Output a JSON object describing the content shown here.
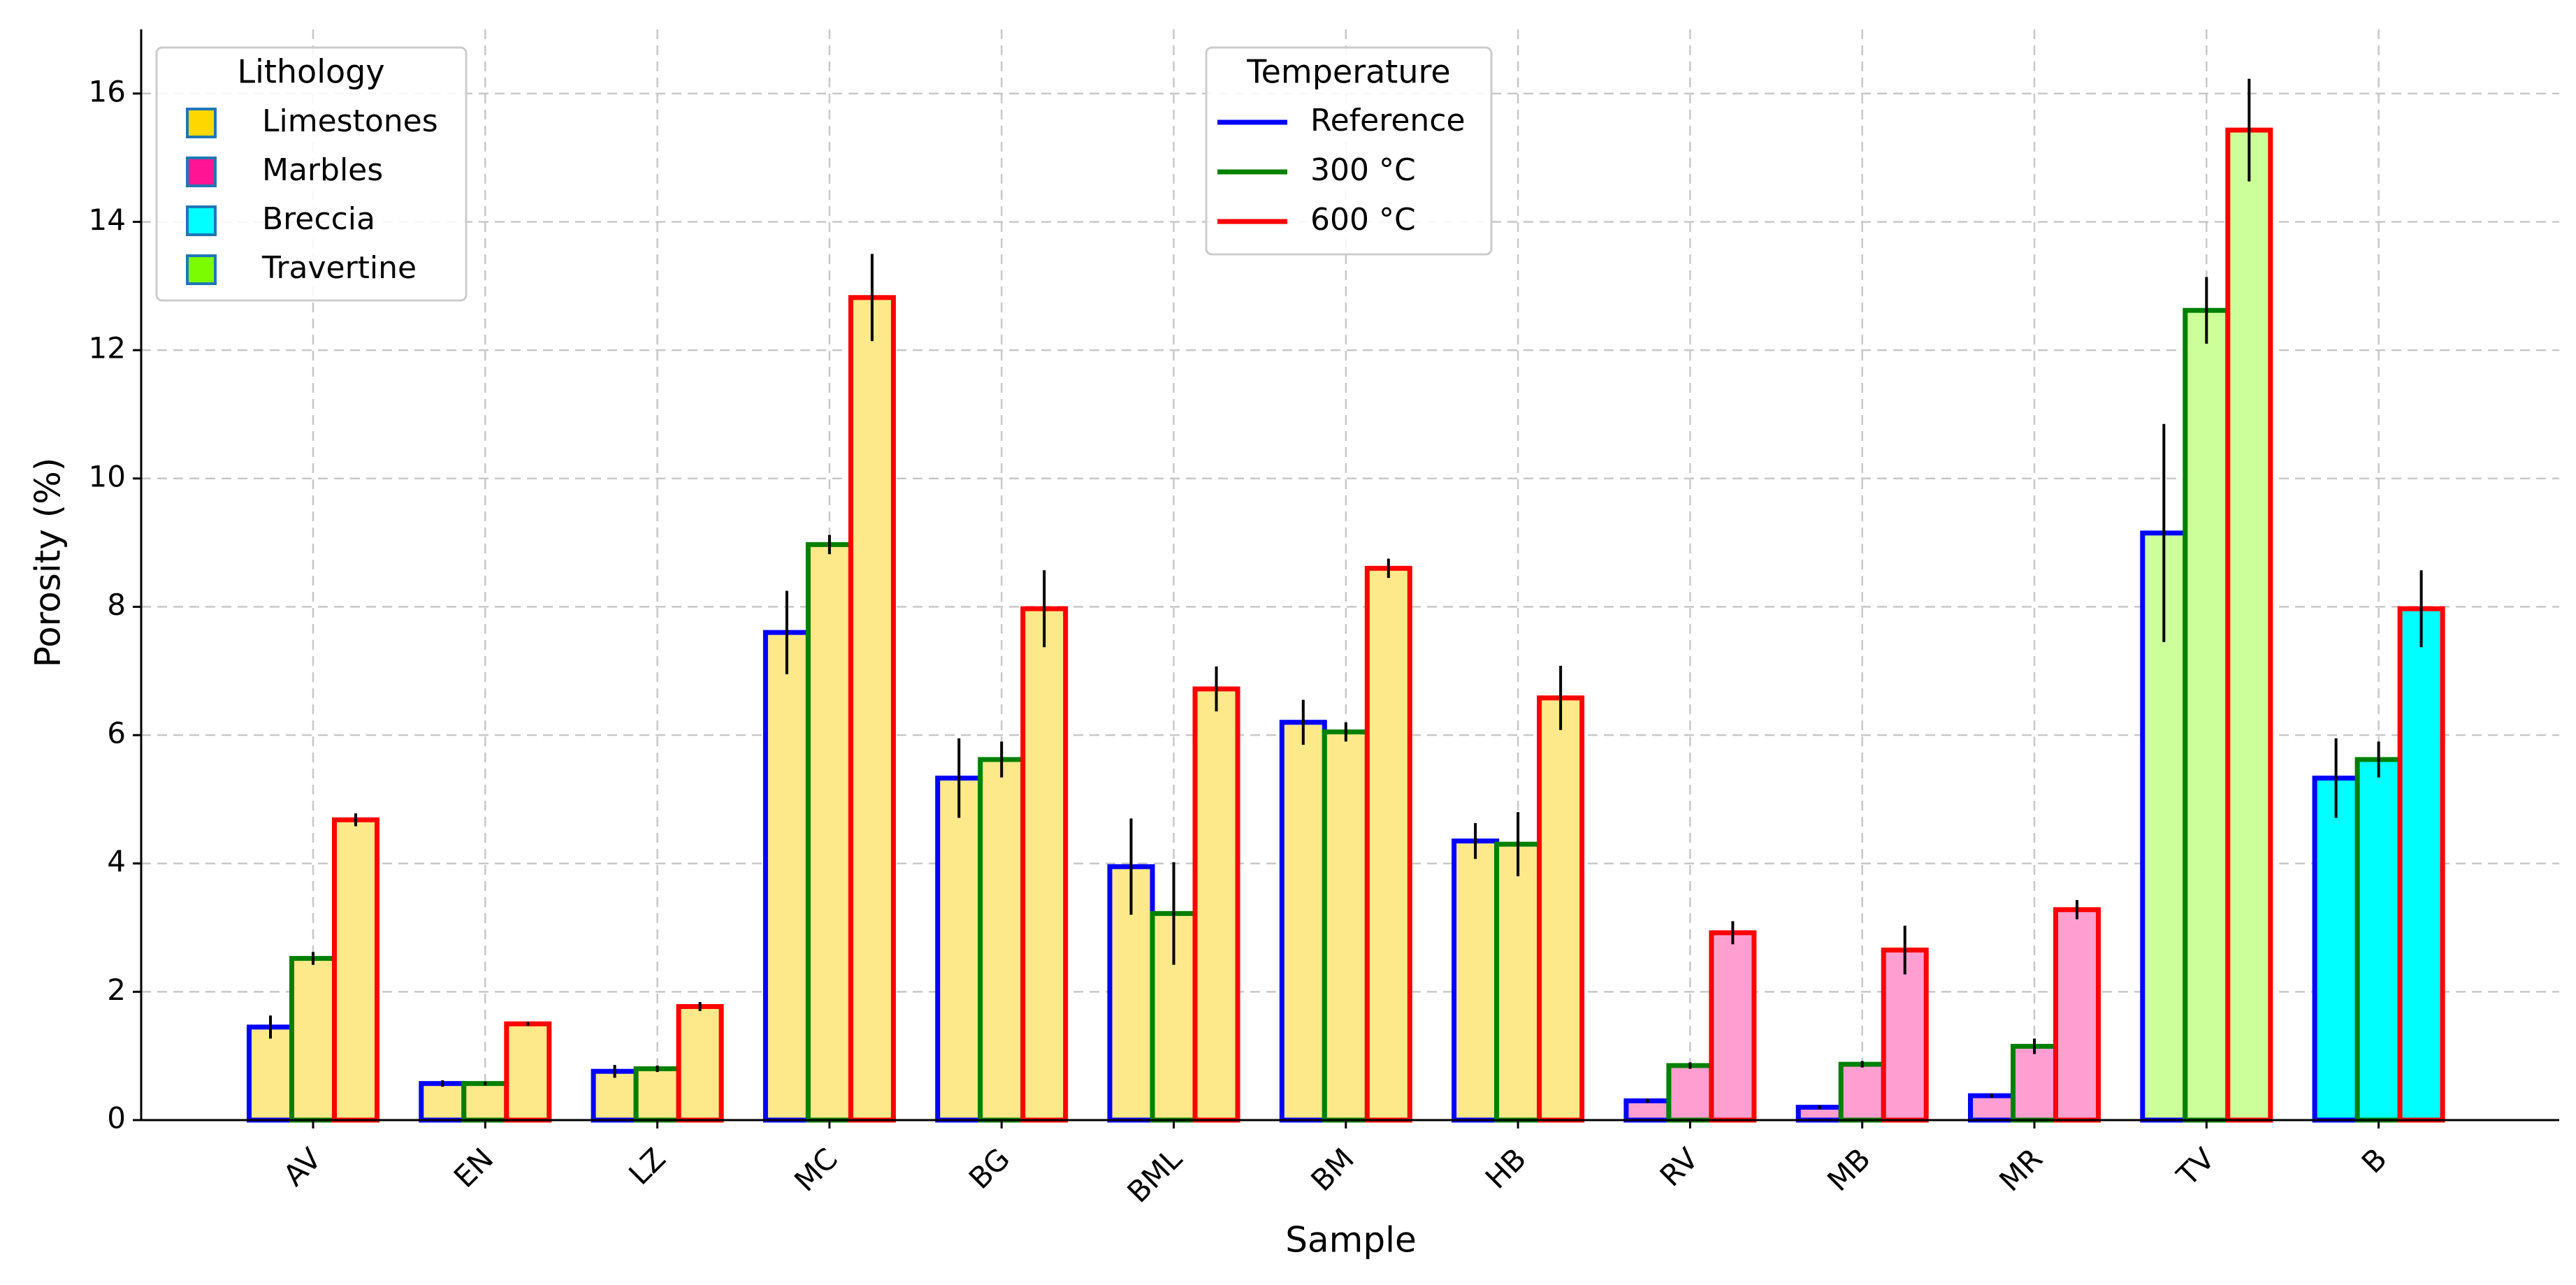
{
  "chart_data": {
    "type": "bar",
    "title": "",
    "xlabel": "Sample",
    "ylabel": "Porosity (%)",
    "ylim": [
      0,
      17
    ],
    "yticks": [
      0,
      2,
      4,
      6,
      8,
      10,
      12,
      14,
      16
    ],
    "grid": true,
    "categories": [
      "AV",
      "EN",
      "LZ",
      "MC",
      "BG",
      "BML",
      "BM",
      "HB",
      "RV",
      "MB",
      "MR",
      "TV",
      "B"
    ],
    "lithology_of_category": [
      "Limestones",
      "Limestones",
      "Limestones",
      "Limestones",
      "Limestones",
      "Limestones",
      "Limestones",
      "Limestones",
      "Marbles",
      "Marbles",
      "Marbles",
      "Travertine",
      "Breccia"
    ],
    "series": [
      {
        "name": "Reference",
        "edge_color": "#0000ff",
        "values": [
          1.45,
          0.57,
          0.76,
          7.6,
          5.33,
          3.95,
          6.2,
          4.35,
          0.3,
          0.2,
          0.38,
          9.15,
          5.33
        ],
        "errors": [
          0.18,
          0.05,
          0.1,
          0.65,
          0.62,
          0.75,
          0.35,
          0.28,
          0.03,
          0.03,
          0.03,
          1.7,
          0.62
        ]
      },
      {
        "name": "300 °C",
        "edge_color": "#008000",
        "values": [
          2.52,
          0.57,
          0.8,
          8.97,
          5.62,
          3.22,
          6.05,
          4.3,
          0.85,
          0.87,
          1.15,
          12.62,
          5.62
        ],
        "errors": [
          0.1,
          0.03,
          0.05,
          0.15,
          0.28,
          0.8,
          0.15,
          0.5,
          0.05,
          0.05,
          0.12,
          0.52,
          0.28
        ]
      },
      {
        "name": "600 °C",
        "edge_color": "#ff0000",
        "values": [
          4.68,
          1.5,
          1.77,
          12.82,
          7.97,
          6.72,
          8.6,
          6.58,
          2.92,
          2.65,
          3.28,
          15.43,
          7.97
        ],
        "errors": [
          0.1,
          0.03,
          0.07,
          0.68,
          0.6,
          0.35,
          0.15,
          0.5,
          0.18,
          0.38,
          0.15,
          0.8,
          0.6
        ]
      }
    ],
    "legends": {
      "lithology": {
        "title": "Lithology",
        "position": "top-left",
        "items": [
          {
            "label": "Limestones",
            "color": "#ffd700"
          },
          {
            "label": "Marbles",
            "color": "#ff1493"
          },
          {
            "label": "Breccia",
            "color": "#00ffff"
          },
          {
            "label": "Travertine",
            "color": "#7cfc00"
          }
        ]
      },
      "temperature": {
        "title": "Temperature",
        "position": "top-center",
        "items": [
          {
            "label": "Reference",
            "color": "#0000ff"
          },
          {
            "label": "300 °C",
            "color": "#008000"
          },
          {
            "label": "600 °C",
            "color": "#ff0000"
          }
        ]
      }
    },
    "bar_fill_colors": {
      "Limestones": "#fde98a",
      "Marbles": "#ff9fd1",
      "Breccia": "#00ffff",
      "Travertine": "#ccff99"
    }
  }
}
